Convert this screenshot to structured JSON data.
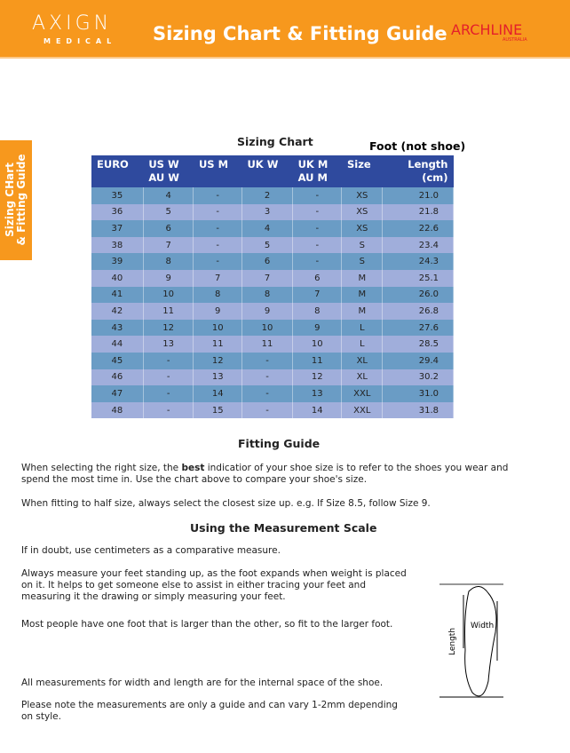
{
  "header": {
    "logo_main": "AXIGN",
    "logo_sub": "MEDICAL",
    "title": "Sizing Chart & Fitting Guide",
    "brand": "ARCHLINE",
    "brand_sub": "AUSTRALIA",
    "bg": "#f7981d"
  },
  "side_tab": {
    "line1": "Sizing CHart",
    "line2": "& Fitting Guide"
  },
  "chart": {
    "title": "Sizing Chart",
    "note": "Foot (not shoe)",
    "columns": [
      "EURO",
      "US W\nAU W",
      "US M",
      "UK W",
      "UK M\nAU M",
      "Size",
      "Length\n(cm)"
    ],
    "rows": [
      [
        "35",
        "4",
        "-",
        "2",
        "-",
        "XS",
        "21.0"
      ],
      [
        "36",
        "5",
        "-",
        "3",
        "-",
        "XS",
        "21.8"
      ],
      [
        "37",
        "6",
        "-",
        "4",
        "-",
        "XS",
        "22.6"
      ],
      [
        "38",
        "7",
        "-",
        "5",
        "-",
        "S",
        "23.4"
      ],
      [
        "39",
        "8",
        "-",
        "6",
        "-",
        "S",
        "24.3"
      ],
      [
        "40",
        "9",
        "7",
        "7",
        "6",
        "M",
        "25.1"
      ],
      [
        "41",
        "10",
        "8",
        "8",
        "7",
        "M",
        "26.0"
      ],
      [
        "42",
        "11",
        "9",
        "9",
        "8",
        "M",
        "26.8"
      ],
      [
        "43",
        "12",
        "10",
        "10",
        "9",
        "L",
        "27.6"
      ],
      [
        "44",
        "13",
        "11",
        "11",
        "10",
        "L",
        "28.5"
      ],
      [
        "45",
        "-",
        "12",
        "-",
        "11",
        "XL",
        "29.4"
      ],
      [
        "46",
        "-",
        "13",
        "-",
        "12",
        "XL",
        "30.2"
      ],
      [
        "47",
        "-",
        "14",
        "-",
        "13",
        "XXL",
        "31.0"
      ],
      [
        "48",
        "-",
        "15",
        "-",
        "14",
        "XXL",
        "31.8"
      ]
    ]
  },
  "fitting": {
    "title": "Fitting Guide",
    "p1_a": "When selecting the right size, the ",
    "p1_b": "best",
    "p1_c": " indicatior of your shoe size is to refer to the shoes you wear and spend the most time in. Use the chart above to compare your shoe's size.",
    "p2": "When fitting to half size, always select the closest size up. e.g. If Size 8.5, follow Size 9."
  },
  "measure": {
    "title": "Using the Measurement Scale",
    "p1": "If in doubt, use centimeters as a comparative measure.",
    "p2": "Always measure your feet standing up, as the foot expands when weight is placed on it. It helps to get someone else to assist in either tracing your feet and measuring it the drawing or simply measuring your feet.",
    "p3": "Most people have one foot that is larger than the other, so fit to the larger foot.",
    "p4": "All measurements for width and length are for the internal space of the shoe.",
    "p5": "Please note the measurements are only a guide and can vary 1-2mm depending on style.",
    "diagram_length": "Length",
    "diagram_width": "Width"
  }
}
